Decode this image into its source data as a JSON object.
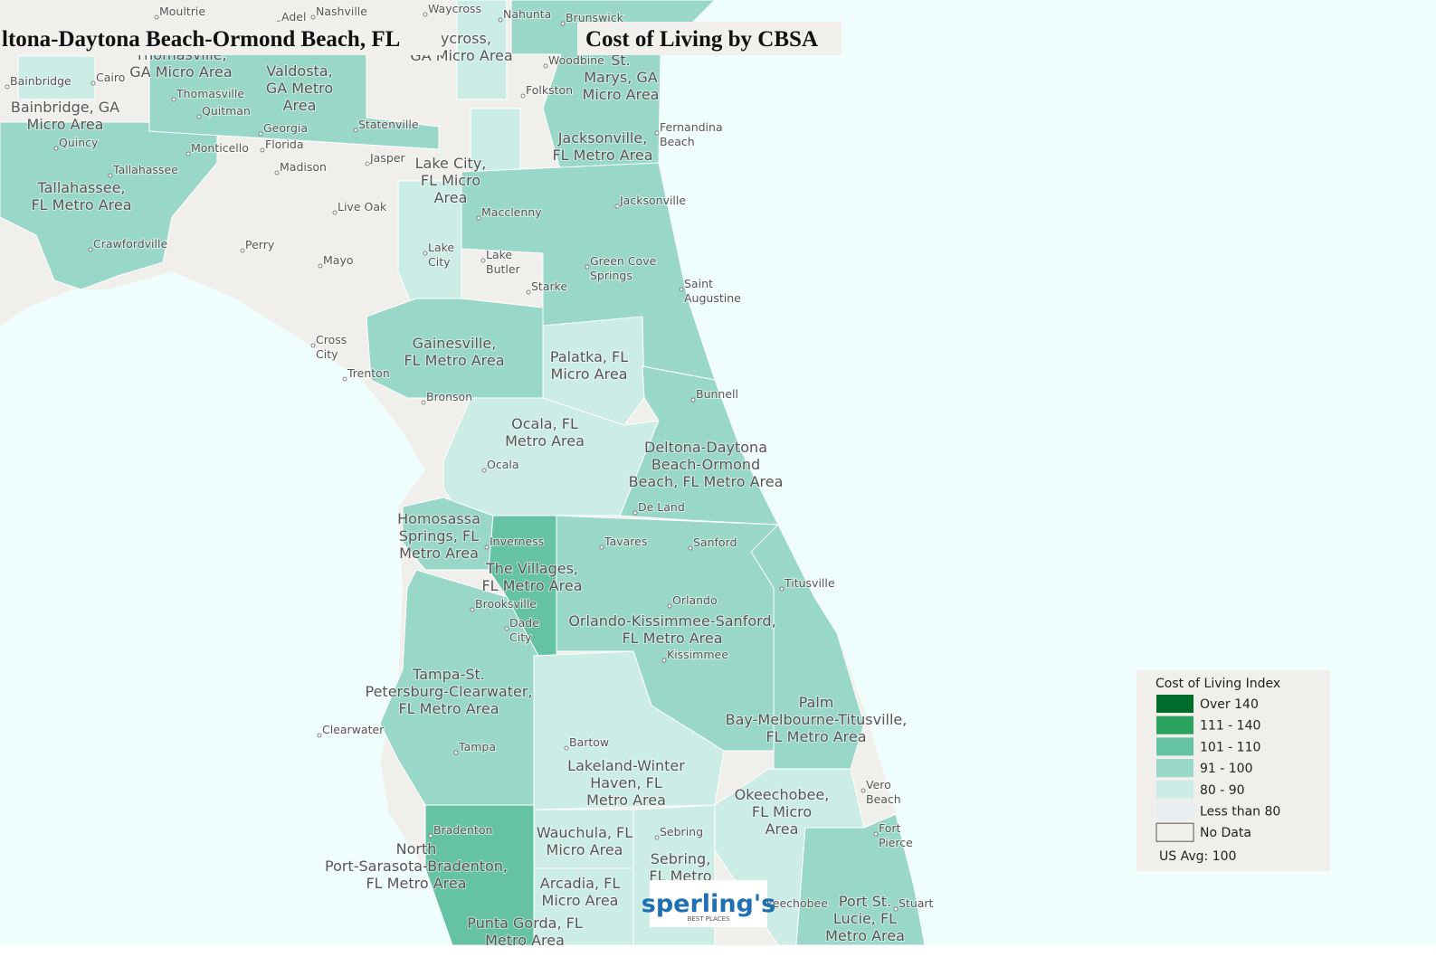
{
  "title": "ltona-Daytona Beach-Ormond Beach, FL",
  "subtitle": "Cost of Living by CBSA",
  "legend": {
    "title": "Cost of Living Index",
    "items": [
      {
        "label": "Over 140",
        "color": "#006d2c"
      },
      {
        "label": "111 - 140",
        "color": "#2ca25f"
      },
      {
        "label": "101 - 110",
        "color": "#66c2a4"
      },
      {
        "label": "91 - 100",
        "color": "#99d8c9"
      },
      {
        "label": "80 - 90",
        "color": "#ccece6"
      },
      {
        "label": "Less than 80",
        "color": "#e8eef2"
      },
      {
        "label": "No Data",
        "color": "#f1efeb"
      }
    ],
    "note": "US Avg: 100"
  },
  "logo": {
    "name": "sperling's",
    "tagline": "BEST PLACES"
  },
  "areas": [
    {
      "lines": [
        "Thomasville,",
        "GA Micro Area"
      ]
    },
    {
      "lines": [
        "Valdosta,",
        "GA Metro",
        "Area"
      ]
    },
    {
      "lines": [
        "aycross,",
        "GA Micro Area"
      ]
    },
    {
      "lines": [
        "Bainbridge, GA",
        "Micro Area"
      ]
    },
    {
      "lines": [
        "Tallahassee,",
        "FL Metro Area"
      ]
    },
    {
      "lines": [
        "Lake City,",
        "FL Micro",
        "Area"
      ]
    },
    {
      "lines": [
        "Jacksonville,",
        "FL Metro Area"
      ]
    },
    {
      "lines": [
        "St.",
        "Marys, GA",
        "Micro Area"
      ]
    },
    {
      "lines": [
        "Gainesville,",
        "FL Metro Area"
      ]
    },
    {
      "lines": [
        "Palatka, FL",
        "Micro Area"
      ]
    },
    {
      "lines": [
        "Ocala, FL",
        "Metro Area"
      ]
    },
    {
      "lines": [
        "Deltona-Daytona",
        "Beach-Ormond",
        "Beach, FL Metro Area"
      ]
    },
    {
      "lines": [
        "Homosassa",
        "Springs, FL",
        "Metro Area"
      ]
    },
    {
      "lines": [
        "The Villages,",
        "FL Metro Area"
      ]
    },
    {
      "lines": [
        "Orlando-Kissimmee-Sanford,",
        "FL Metro Area"
      ]
    },
    {
      "lines": [
        "Tampa-St.",
        "Petersburg-Clearwater,",
        "FL Metro Area"
      ]
    },
    {
      "lines": [
        "Palm",
        "Bay-Melbourne-Titusville,",
        "FL Metro Area"
      ]
    },
    {
      "lines": [
        "Lakeland-Winter",
        "Haven, FL",
        "Metro Area"
      ]
    },
    {
      "lines": [
        "Okeechobee,",
        "FL Micro",
        "Area"
      ]
    },
    {
      "lines": [
        "Wauchula, FL",
        "Micro Area"
      ]
    },
    {
      "lines": [
        "Sebring,",
        "FL Metro"
      ]
    },
    {
      "lines": [
        "North",
        "Port-Sarasota-Bradenton,",
        "FL Metro Area"
      ]
    },
    {
      "lines": [
        "Arcadia, FL",
        "Micro Area"
      ]
    },
    {
      "lines": [
        "Punta Gorda, FL",
        "Metro Area"
      ]
    },
    {
      "lines": [
        "Port St.",
        "Lucie, FL",
        "Metro Area"
      ]
    }
  ],
  "cities": [
    {
      "lines": [
        "Moultrie"
      ]
    },
    {
      "lines": [
        "Adel"
      ]
    },
    {
      "lines": [
        "Nashville"
      ]
    },
    {
      "lines": [
        "Waycross"
      ]
    },
    {
      "lines": [
        "Nahunta"
      ]
    },
    {
      "lines": [
        "Brunswick"
      ]
    },
    {
      "lines": [
        "Woodbine"
      ]
    },
    {
      "lines": [
        "Folkston"
      ]
    },
    {
      "lines": [
        "Cairo"
      ]
    },
    {
      "lines": [
        "Bainbridge"
      ]
    },
    {
      "lines": [
        "Thomasville"
      ]
    },
    {
      "lines": [
        "Quitman"
      ]
    },
    {
      "lines": [
        "Statenville"
      ]
    },
    {
      "lines": [
        "Georgia"
      ]
    },
    {
      "lines": [
        "Florida"
      ]
    },
    {
      "lines": [
        "Quincy"
      ]
    },
    {
      "lines": [
        "Monticello"
      ]
    },
    {
      "lines": [
        "Tallahassee"
      ]
    },
    {
      "lines": [
        "Madison"
      ]
    },
    {
      "lines": [
        "Jasper"
      ]
    },
    {
      "lines": [
        "Fernandina",
        "Beach"
      ]
    },
    {
      "lines": [
        "Live Oak"
      ]
    },
    {
      "lines": [
        "Macclenny"
      ]
    },
    {
      "lines": [
        "Jacksonville"
      ]
    },
    {
      "lines": [
        "Crawfordville"
      ]
    },
    {
      "lines": [
        "Perry"
      ]
    },
    {
      "lines": [
        "Mayo"
      ]
    },
    {
      "lines": [
        "Lake",
        "City"
      ]
    },
    {
      "lines": [
        "Lake",
        "Butler"
      ]
    },
    {
      "lines": [
        "Starke"
      ]
    },
    {
      "lines": [
        "Green Cove",
        "Springs"
      ]
    },
    {
      "lines": [
        "Saint",
        "Augustine"
      ]
    },
    {
      "lines": [
        "Cross",
        "City"
      ]
    },
    {
      "lines": [
        "Trenton"
      ]
    },
    {
      "lines": [
        "Bronson"
      ]
    },
    {
      "lines": [
        "Bunnell"
      ]
    },
    {
      "lines": [
        "Ocala"
      ]
    },
    {
      "lines": [
        "De Land"
      ]
    },
    {
      "lines": [
        "Inverness"
      ]
    },
    {
      "lines": [
        "Tavares"
      ]
    },
    {
      "lines": [
        "Sanford"
      ]
    },
    {
      "lines": [
        "Titusville"
      ]
    },
    {
      "lines": [
        "Orlando"
      ]
    },
    {
      "lines": [
        "Brooksville"
      ]
    },
    {
      "lines": [
        "Dade",
        "City"
      ]
    },
    {
      "lines": [
        "Kissimmee"
      ]
    },
    {
      "lines": [
        "Clearwater"
      ]
    },
    {
      "lines": [
        "Tampa"
      ]
    },
    {
      "lines": [
        "Bartow"
      ]
    },
    {
      "lines": [
        "Vero",
        "Beach"
      ]
    },
    {
      "lines": [
        "Fort",
        "Pierce"
      ]
    },
    {
      "lines": [
        "Sebring"
      ]
    },
    {
      "lines": [
        "Bradenton"
      ]
    },
    {
      "lines": [
        "keechobee"
      ]
    },
    {
      "lines": [
        "Stuart"
      ]
    }
  ]
}
